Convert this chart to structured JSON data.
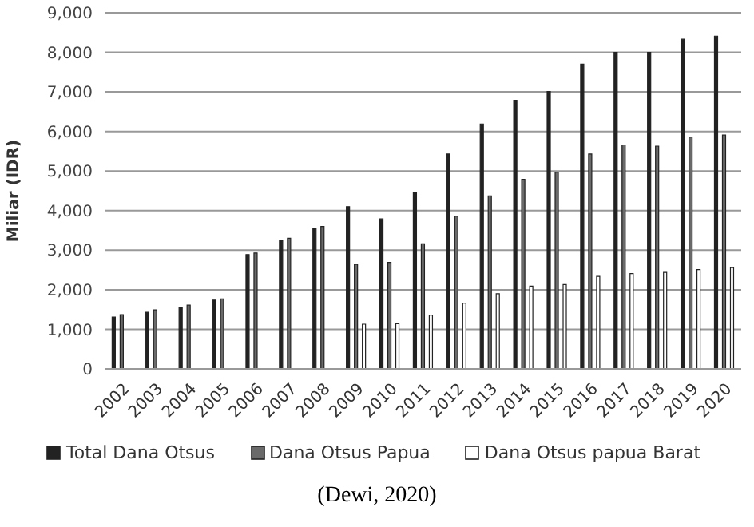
{
  "chart_data": {
    "type": "bar",
    "ylabel": "Miliar (IDR)",
    "categories": [
      "2002",
      "2003",
      "2004",
      "2005",
      "2006",
      "2007",
      "2008",
      "2009",
      "2010",
      "2011",
      "2012",
      "2013",
      "2014",
      "2015",
      "2016",
      "2017",
      "2018",
      "2019",
      "2020"
    ],
    "series": [
      {
        "name": "Total Dana Otsus",
        "color": "#222222",
        "values": [
          1310,
          1430,
          1560,
          1740,
          2890,
          3240,
          3560,
          4100,
          3790,
          4460,
          5430,
          6190,
          6790,
          7010,
          7700,
          8000,
          8000,
          8330,
          8410
        ]
      },
      {
        "name": "Dana Otsus Papua",
        "color": "#6a6a6a",
        "values": [
          1370,
          1490,
          1610,
          1770,
          2930,
          3300,
          3600,
          2640,
          2690,
          3160,
          3860,
          4370,
          4790,
          4970,
          5430,
          5660,
          5630,
          5860,
          5910
        ]
      },
      {
        "name": "Dana Otsus papua Barat",
        "color": "#ffffff",
        "values": [
          null,
          null,
          null,
          null,
          null,
          null,
          null,
          1130,
          1140,
          1360,
          1660,
          1900,
          2090,
          2130,
          2340,
          2410,
          2440,
          2510,
          2560
        ]
      }
    ],
    "ylim": [
      0,
      9000
    ],
    "yticks": [
      {
        "value": 0,
        "label": "0"
      },
      {
        "value": 1000,
        "label": "1,000"
      },
      {
        "value": 2000,
        "label": "2,000"
      },
      {
        "value": 3000,
        "label": "3,000"
      },
      {
        "value": 4000,
        "label": "4,000"
      },
      {
        "value": 5000,
        "label": "5,000"
      },
      {
        "value": 6000,
        "label": "6,000"
      },
      {
        "value": 7000,
        "label": "7,000"
      },
      {
        "value": 8000,
        "label": "8,000"
      },
      {
        "value": 9000,
        "label": "9,000"
      }
    ],
    "grid": "y",
    "legend": "bottom",
    "annotations": [
      "(Dewi, 2020)"
    ]
  }
}
